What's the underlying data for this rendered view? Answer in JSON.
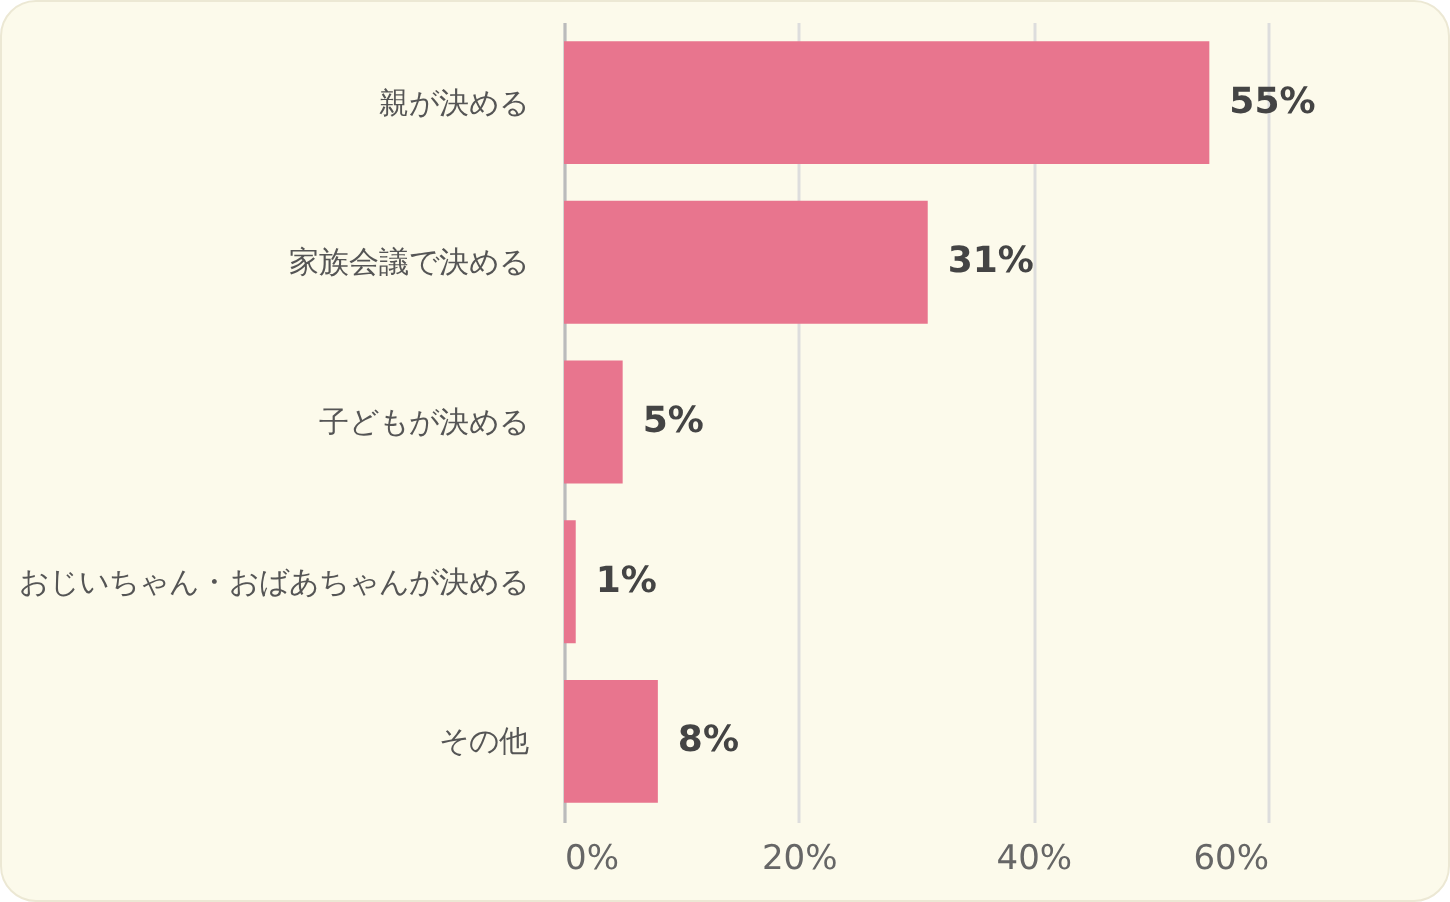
{
  "chart_data": {
    "type": "bar",
    "orientation": "horizontal",
    "categories": [
      "親が決める",
      "家族会議で決める",
      "子どもが決める",
      "おじいちゃん・おばあちゃんが決める",
      "その他"
    ],
    "values": [
      55,
      31,
      5,
      1,
      8
    ],
    "value_labels": [
      "55%",
      "31%",
      "5%",
      "1%",
      "8%"
    ],
    "color": "#e8758e",
    "xlim": [
      0,
      60
    ],
    "xticks": [
      {
        "value": 0,
        "label": "0%"
      },
      {
        "value": 20,
        "label": "20%"
      },
      {
        "value": 40,
        "label": "40%"
      },
      {
        "value": 60,
        "label": "60%"
      }
    ],
    "grid": "x"
  }
}
